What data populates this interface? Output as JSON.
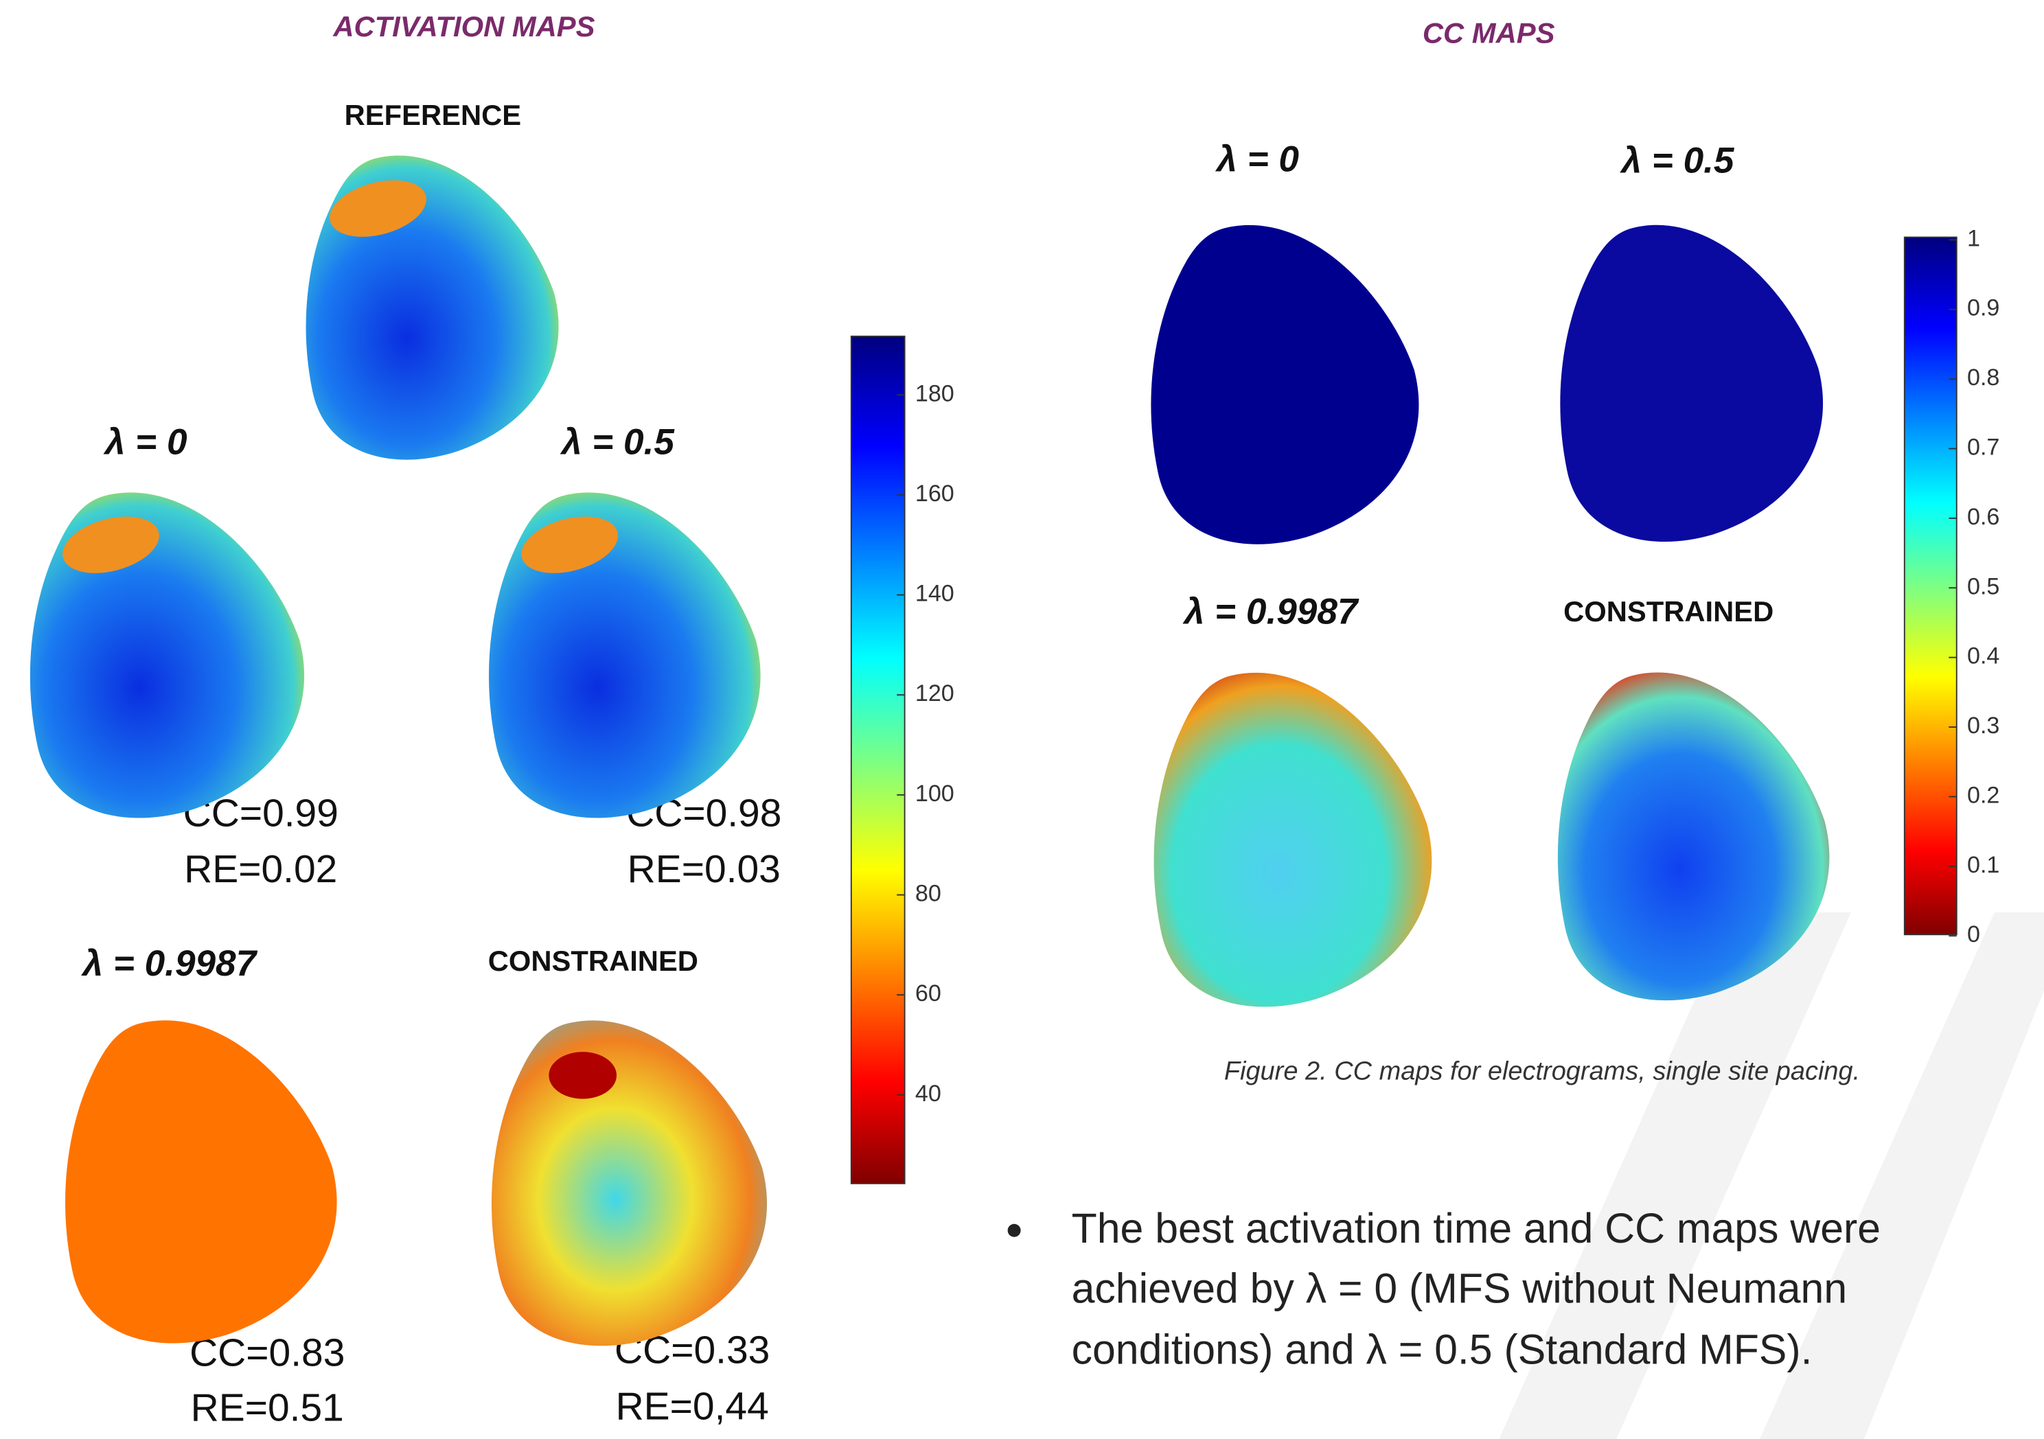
{
  "left": {
    "title": "ACTIVATION MAPS",
    "reference": "REFERENCE",
    "panels": [
      {
        "label": "λ = 0",
        "cc": "CC=0.99",
        "re": "RE=0.02"
      },
      {
        "label": "λ = 0.5",
        "cc": "CC=0.98",
        "re": "RE=0.03"
      },
      {
        "label": "λ = 0.9987",
        "cc": "CC=0.83",
        "re": "RE=0.51"
      },
      {
        "label": "CONSTRAINED",
        "cc": "CC=0.33",
        "re": "RE=0,44"
      }
    ],
    "colorbar_ticks": [
      180,
      160,
      140,
      120,
      100,
      80,
      60,
      40
    ]
  },
  "right": {
    "title": "CC MAPS",
    "panels": [
      {
        "label": "λ = 0"
      },
      {
        "label": "λ = 0.5"
      },
      {
        "label": "λ = 0.9987"
      },
      {
        "label": "CONSTRAINED"
      }
    ],
    "colorbar_ticks": [
      1,
      0.9,
      0.8,
      0.7,
      0.6,
      0.5,
      0.4,
      0.3,
      0.2,
      0.1,
      0
    ],
    "caption": "Figure 2. CC maps for electrograms, single site pacing."
  },
  "bullet": [
    "The best activation time and CC maps were",
    "achieved by λ = 0 (MFS without Neumann",
    "conditions) and λ = 0.5 (Standard MFS)."
  ]
}
